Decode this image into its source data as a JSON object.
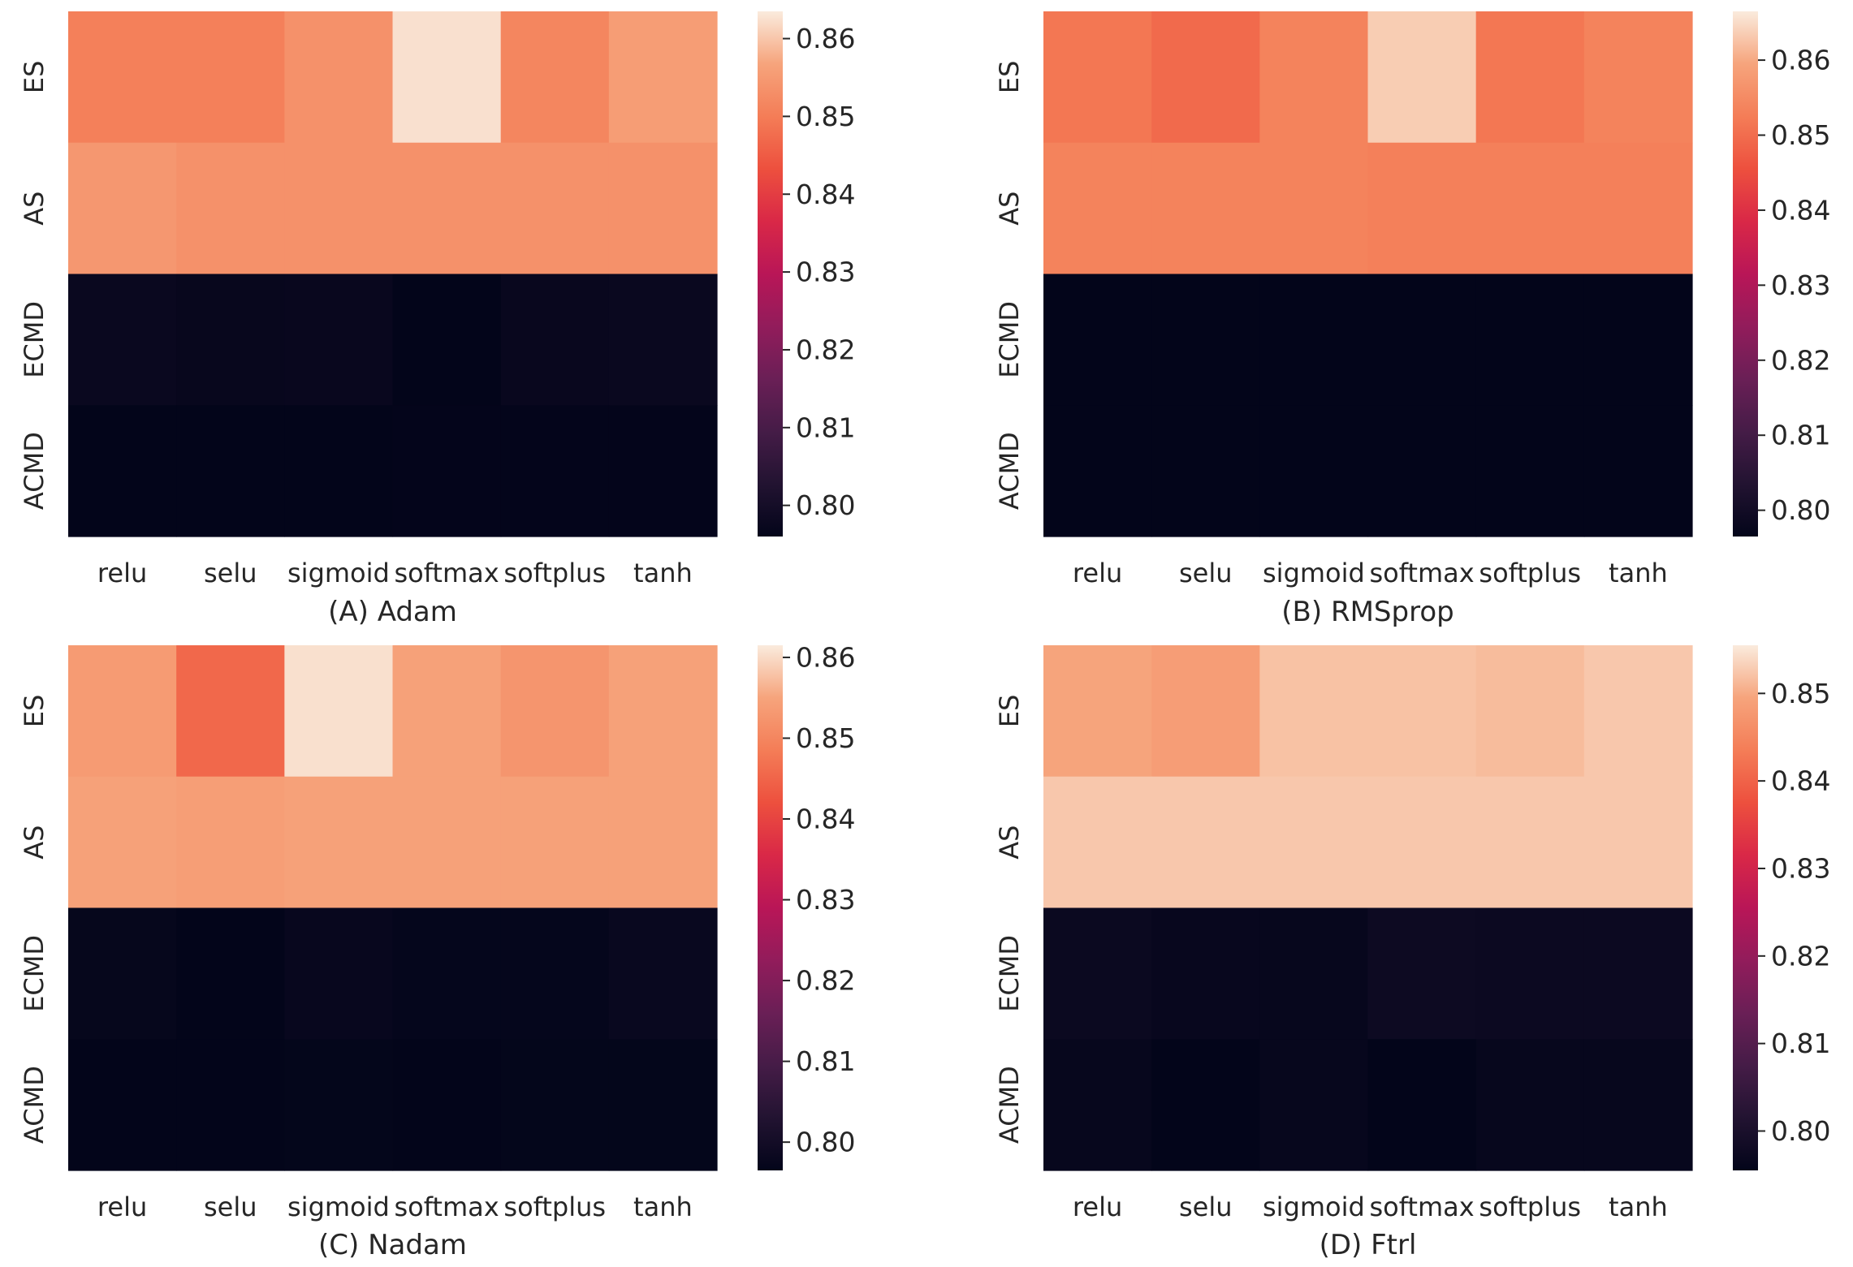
{
  "chart_data": [
    {
      "type": "heatmap",
      "title": "(A) Adam",
      "x_categories": [
        "relu",
        "selu",
        "sigmoid",
        "softmax",
        "softplus",
        "tanh"
      ],
      "y_categories": [
        "ES",
        "AS",
        "ECMD",
        "ACMD"
      ],
      "values": [
        [
          0.8505,
          0.8505,
          0.8535,
          0.8625,
          0.8515,
          0.8555
        ],
        [
          0.8545,
          0.8535,
          0.8535,
          0.8535,
          0.8535,
          0.8535
        ],
        [
          0.7975,
          0.797,
          0.7972,
          0.796,
          0.7972,
          0.7975
        ],
        [
          0.796,
          0.796,
          0.796,
          0.7962,
          0.7962,
          0.7962
        ]
      ],
      "colorbar": {
        "min": 0.796,
        "max": 0.8635,
        "ticks": [
          0.8,
          0.81,
          0.82,
          0.83,
          0.84,
          0.85,
          0.86
        ],
        "tick_labels": [
          "0.80",
          "0.81",
          "0.82",
          "0.83",
          "0.84",
          "0.85",
          "0.86"
        ]
      }
    },
    {
      "type": "heatmap",
      "title": "(B) RMSprop",
      "x_categories": [
        "relu",
        "selu",
        "sigmoid",
        "softmax",
        "softplus",
        "tanh"
      ],
      "y_categories": [
        "ES",
        "AS",
        "ECMD",
        "ACMD"
      ],
      "values": [
        [
          0.8515,
          0.8495,
          0.8535,
          0.8635,
          0.8515,
          0.8535
        ],
        [
          0.8535,
          0.8535,
          0.8535,
          0.853,
          0.853,
          0.853
        ],
        [
          0.796,
          0.796,
          0.796,
          0.796,
          0.796,
          0.796
        ],
        [
          0.796,
          0.796,
          0.796,
          0.796,
          0.796,
          0.796
        ]
      ],
      "colorbar": {
        "min": 0.7965,
        "max": 0.8665,
        "ticks": [
          0.8,
          0.81,
          0.82,
          0.83,
          0.84,
          0.85,
          0.86
        ],
        "tick_labels": [
          "0.80",
          "0.81",
          "0.82",
          "0.83",
          "0.84",
          "0.85",
          "0.86"
        ]
      }
    },
    {
      "type": "heatmap",
      "title": "(C) Nadam",
      "x_categories": [
        "relu",
        "selu",
        "sigmoid",
        "softmax",
        "softplus",
        "tanh"
      ],
      "y_categories": [
        "ES",
        "AS",
        "ECMD",
        "ACMD"
      ],
      "values": [
        [
          0.8535,
          0.8455,
          0.8605,
          0.8545,
          0.8525,
          0.8545
        ],
        [
          0.8545,
          0.854,
          0.8545,
          0.8545,
          0.8545,
          0.8545
        ],
        [
          0.7972,
          0.796,
          0.7975,
          0.797,
          0.797,
          0.7978
        ],
        [
          0.7965,
          0.7965,
          0.7968,
          0.7965,
          0.7968,
          0.7968
        ]
      ],
      "colorbar": {
        "min": 0.7965,
        "max": 0.8615,
        "ticks": [
          0.8,
          0.81,
          0.82,
          0.83,
          0.84,
          0.85,
          0.86
        ],
        "tick_labels": [
          "0.80",
          "0.81",
          "0.82",
          "0.83",
          "0.84",
          "0.85",
          "0.86"
        ]
      }
    },
    {
      "type": "heatmap",
      "title": "(D) Ftrl",
      "x_categories": [
        "relu",
        "selu",
        "sigmoid",
        "softmax",
        "softplus",
        "tanh"
      ],
      "y_categories": [
        "ES",
        "AS",
        "ECMD",
        "ACMD"
      ],
      "values": [
        [
          0.8495,
          0.8485,
          0.852,
          0.852,
          0.8515,
          0.8525
        ],
        [
          0.8525,
          0.8525,
          0.8525,
          0.8525,
          0.8525,
          0.8525
        ],
        [
          0.797,
          0.7965,
          0.7962,
          0.7975,
          0.7972,
          0.7972
        ],
        [
          0.7962,
          0.7955,
          0.7962,
          0.7955,
          0.7962,
          0.7962
        ]
      ],
      "colorbar": {
        "min": 0.7955,
        "max": 0.8555,
        "ticks": [
          0.8,
          0.81,
          0.82,
          0.83,
          0.84,
          0.85
        ],
        "tick_labels": [
          "0.80",
          "0.81",
          "0.82",
          "0.83",
          "0.84",
          "0.85"
        ]
      }
    }
  ]
}
